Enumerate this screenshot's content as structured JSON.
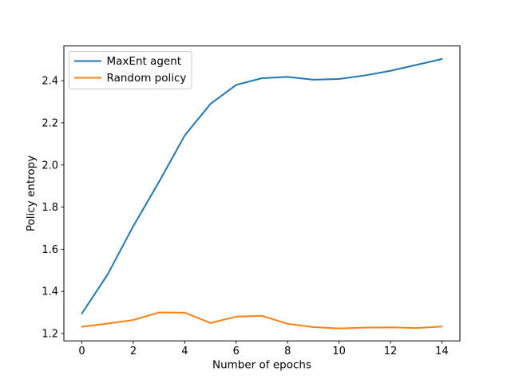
{
  "chart_data": {
    "type": "line",
    "title": "",
    "xlabel": "Number of epochs",
    "ylabel": "Policy entropy",
    "x": [
      0,
      1,
      2,
      3,
      4,
      5,
      6,
      7,
      8,
      9,
      10,
      11,
      12,
      13,
      14
    ],
    "series": [
      {
        "name": "MaxEnt agent",
        "color": "#1f77b4",
        "values": [
          1.295,
          1.48,
          1.71,
          1.92,
          2.14,
          2.29,
          2.38,
          2.412,
          2.418,
          2.405,
          2.408,
          2.425,
          2.447,
          2.475,
          2.503
        ]
      },
      {
        "name": "Random policy",
        "color": "#ff7f0e",
        "values": [
          1.232,
          1.247,
          1.264,
          1.3,
          1.299,
          1.25,
          1.28,
          1.284,
          1.246,
          1.23,
          1.224,
          1.228,
          1.229,
          1.226,
          1.233
        ]
      }
    ],
    "xlim": [
      -0.7,
      14.7
    ],
    "ylim": [
      1.165,
      2.565
    ],
    "xticks": [
      {
        "v": 0,
        "label": "0"
      },
      {
        "v": 2,
        "label": "2"
      },
      {
        "v": 4,
        "label": "4"
      },
      {
        "v": 6,
        "label": "6"
      },
      {
        "v": 8,
        "label": "8"
      },
      {
        "v": 10,
        "label": "10"
      },
      {
        "v": 12,
        "label": "12"
      },
      {
        "v": 14,
        "label": "14"
      }
    ],
    "yticks": [
      {
        "v": 1.2,
        "label": "1.2"
      },
      {
        "v": 1.4,
        "label": "1.4"
      },
      {
        "v": 1.6,
        "label": "1.6"
      },
      {
        "v": 1.8,
        "label": "1.8"
      },
      {
        "v": 2.0,
        "label": "2.0"
      },
      {
        "v": 2.2,
        "label": "2.2"
      },
      {
        "v": 2.4,
        "label": "2.4"
      }
    ],
    "grid": false,
    "legend": {
      "position": "upper left",
      "entries": [
        "MaxEnt agent",
        "Random policy"
      ]
    },
    "background": "#ffffff",
    "axis_color": "#000000",
    "legend_border_color": "#cccccc",
    "legend_background": "#ffffff"
  }
}
